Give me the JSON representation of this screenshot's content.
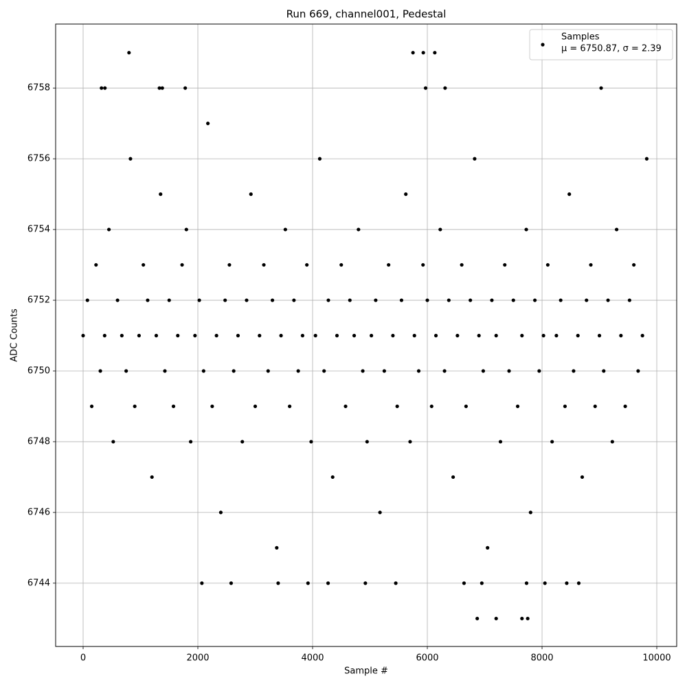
{
  "chart_data": {
    "type": "scatter",
    "title": "Run 669, channel001, Pedestal",
    "x_label": "Sample #",
    "y_label": "ADC Counts",
    "xlim": [
      -479,
      10347
    ],
    "ylim": [
      6742.21,
      6759.81
    ],
    "xticks": [
      0,
      2000,
      4000,
      6000,
      8000,
      10000
    ],
    "yticks": [
      6744,
      6746,
      6748,
      6750,
      6752,
      6754,
      6756,
      6758
    ],
    "grid": true,
    "legend": "upper right",
    "stats_label": "μ = 6750.87, σ = 2.39",
    "series": [
      {
        "name": "Samples",
        "color": "#000000",
        "x": [
          0,
          75,
          150,
          225,
          300,
          375,
          450,
          525,
          600,
          675,
          750,
          825,
          900,
          975,
          1050,
          1125,
          1200,
          1275,
          1350,
          1425,
          1500,
          1575,
          1650,
          1725,
          1800,
          1875,
          1950,
          2025,
          2100,
          2175,
          2250,
          2325,
          2400,
          2475,
          2550,
          2625,
          2700,
          2775,
          2850,
          2925,
          3000,
          3075,
          3150,
          3225,
          3300,
          3375,
          3450,
          3525,
          3600,
          3675,
          3750,
          3825,
          3900,
          3975,
          4050,
          4125,
          4200,
          4275,
          4350,
          4425,
          4500,
          4575,
          4650,
          4725,
          4800,
          4875,
          4950,
          5025,
          5100,
          5175,
          5250,
          5325,
          5400,
          5475,
          5550,
          5625,
          5700,
          5775,
          5850,
          5925,
          6000,
          6075,
          6150,
          6225,
          6300,
          6375,
          6450,
          6525,
          6600,
          6675,
          6750,
          6825,
          6900,
          6975,
          7050,
          7125,
          7200,
          7275,
          7350,
          7425,
          7500,
          7575,
          7650,
          7725,
          7800,
          7875,
          7950,
          8025,
          8100,
          8175,
          8250,
          8325,
          8400,
          8475,
          8550,
          8625,
          8700,
          8775,
          8850,
          8925,
          9000,
          9075,
          9150,
          9225,
          9300,
          9375,
          9450,
          9525,
          9600,
          9675,
          9750,
          9825,
          800,
          5750,
          5930,
          6130,
          320,
          380,
          1330,
          1380,
          1780,
          5970,
          6310,
          9030,
          6870,
          7200,
          7650,
          7750,
          2070,
          2580,
          3400,
          3920,
          4270,
          4920,
          5450,
          6640,
          6950,
          7730,
          8050,
          8430,
          8640
        ],
        "y": [
          6751,
          6752,
          6749,
          6753,
          6750,
          6751,
          6754,
          6748,
          6752,
          6751,
          6750,
          6756,
          6749,
          6751,
          6753,
          6752,
          6747,
          6751,
          6755,
          6750,
          6752,
          6749,
          6751,
          6753,
          6754,
          6748,
          6751,
          6752,
          6750,
          6757,
          6749,
          6751,
          6746,
          6752,
          6753,
          6750,
          6751,
          6748,
          6752,
          6755,
          6749,
          6751,
          6753,
          6750,
          6752,
          6745,
          6751,
          6754,
          6749,
          6752,
          6750,
          6751,
          6753,
          6748,
          6751,
          6756,
          6750,
          6752,
          6747,
          6751,
          6753,
          6749,
          6752,
          6751,
          6754,
          6750,
          6748,
          6751,
          6752,
          6746,
          6750,
          6753,
          6751,
          6749,
          6752,
          6755,
          6748,
          6751,
          6750,
          6753,
          6752,
          6749,
          6751,
          6754,
          6750,
          6752,
          6747,
          6751,
          6753,
          6749,
          6752,
          6756,
          6751,
          6750,
          6745,
          6752,
          6751,
          6748,
          6753,
          6750,
          6752,
          6749,
          6751,
          6754,
          6746,
          6752,
          6750,
          6751,
          6753,
          6748,
          6751,
          6752,
          6749,
          6755,
          6750,
          6751,
          6747,
          6752,
          6753,
          6749,
          6751,
          6750,
          6752,
          6748,
          6754,
          6751,
          6749,
          6752,
          6753,
          6750,
          6751,
          6756,
          6759,
          6759,
          6759,
          6759,
          6758,
          6758,
          6758,
          6758,
          6758,
          6758,
          6758,
          6758,
          6743,
          6743,
          6743,
          6743,
          6744,
          6744,
          6744,
          6744,
          6744,
          6744,
          6744,
          6744,
          6744,
          6744,
          6744,
          6744,
          6744
        ]
      }
    ]
  }
}
